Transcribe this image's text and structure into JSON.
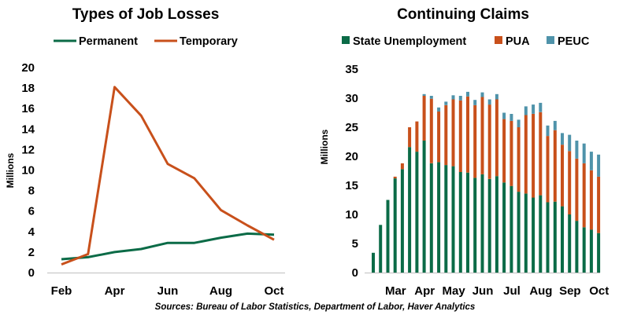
{
  "colors": {
    "permanent": "#0b6b47",
    "temporary": "#c8501b",
    "state": "#0b6b47",
    "pua": "#c8501b",
    "peuc": "#4f93aa",
    "axis": "#bfbfbf"
  },
  "source": "Sources: Bureau of Labor Statistics, Department of Labor, Haver Analytics",
  "chart_data": [
    {
      "type": "line",
      "title": "Types of Job Losses",
      "ylabel": "Millions",
      "xlabel": "",
      "ylim": [
        0,
        20
      ],
      "yticks": [
        "0",
        "2",
        "4",
        "6",
        "8",
        "10",
        "12",
        "14",
        "16",
        "18",
        "20"
      ],
      "x": [
        "Feb",
        "Mar",
        "Apr",
        "May",
        "Jun",
        "Jul",
        "Aug",
        "Sep",
        "Oct"
      ],
      "xtick_labels": [
        "Feb",
        "Apr",
        "Jun",
        "Aug",
        "Oct"
      ],
      "legend_position": "top",
      "grid": false,
      "series": [
        {
          "name": "Permanent",
          "color": "#0b6b47",
          "values": [
            1.3,
            1.5,
            2.0,
            2.3,
            2.9,
            2.9,
            3.4,
            3.8,
            3.7
          ]
        },
        {
          "name": "Temporary",
          "color": "#c8501b",
          "values": [
            0.8,
            1.8,
            18.1,
            15.3,
            10.6,
            9.2,
            6.1,
            4.6,
            3.2
          ]
        }
      ]
    },
    {
      "type": "bar",
      "stacked": true,
      "title": "Continuing Claims",
      "ylabel": "Millions",
      "xlabel": "",
      "ylim": [
        0,
        35
      ],
      "yticks": [
        "0",
        "5",
        "10",
        "15",
        "20",
        "25",
        "30",
        "35"
      ],
      "xtick_labels": [
        "Mar",
        "Apr",
        "May",
        "Jun",
        "Jul",
        "Aug",
        "Sep",
        "Oct"
      ],
      "legend_position": "top",
      "grid": false,
      "series": [
        {
          "name": "State Unemployment",
          "color": "#0b6b47",
          "values": [
            3.4,
            8.2,
            12.5,
            16.2,
            17.8,
            21.6,
            20.8,
            22.7,
            18.8,
            19.0,
            18.5,
            18.3,
            17.3,
            17.2,
            16.3,
            16.9,
            16.1,
            16.6,
            15.5,
            14.9,
            13.9,
            13.6,
            12.9,
            13.3,
            12.1,
            12.2,
            11.4,
            10.0,
            8.9,
            7.8,
            7.4,
            6.8
          ]
        },
        {
          "name": "PUA",
          "color": "#c8501b",
          "values": [
            0,
            0,
            0,
            0.3,
            1.0,
            3.4,
            5.2,
            7.7,
            11.1,
            8.7,
            10.3,
            11.5,
            12.3,
            13.1,
            12.5,
            13.3,
            12.8,
            13.2,
            10.9,
            11.2,
            11.1,
            13.5,
            14.4,
            14.3,
            11.4,
            12.3,
            10.6,
            10.9,
            10.7,
            11.0,
            10.2,
            9.7
          ]
        },
        {
          "name": "PEUC",
          "color": "#4f93aa",
          "values": [
            0,
            0,
            0,
            0,
            0,
            0,
            0,
            0.3,
            0.5,
            0.7,
            0.6,
            0.7,
            0.8,
            0.8,
            0.9,
            0.8,
            0.9,
            0.9,
            1.1,
            1.2,
            1.3,
            1.5,
            1.6,
            1.6,
            1.8,
            1.6,
            2.0,
            2.8,
            3.1,
            3.4,
            3.2,
            3.8
          ]
        }
      ]
    }
  ]
}
